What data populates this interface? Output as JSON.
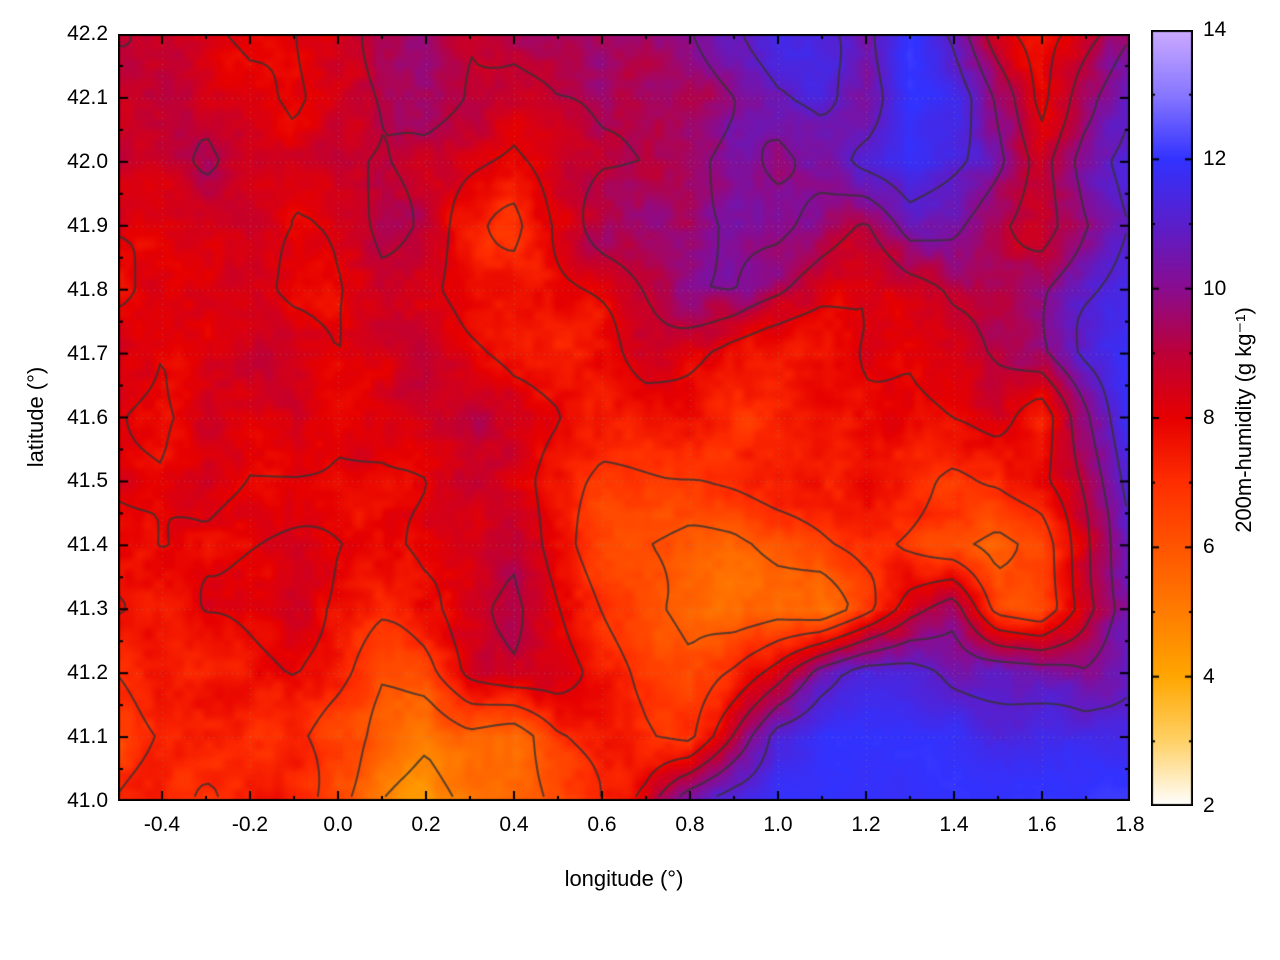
{
  "figure": {
    "background": "#ffffff"
  },
  "chart_data": {
    "type": "heatmap",
    "title": "",
    "xlabel": "longitude (°)",
    "ylabel": "latitude (°)",
    "xlim": [
      -0.5,
      1.8
    ],
    "ylim": [
      41.0,
      42.2
    ],
    "zlim": [
      2,
      14
    ],
    "grid_on": true,
    "xticks": [
      -0.4,
      -0.2,
      0.0,
      0.2,
      0.4,
      0.6,
      0.8,
      1.0,
      1.2,
      1.4,
      1.6,
      1.8
    ],
    "xtick_labels": [
      "-0.4",
      "-0.2",
      "0.0",
      "0.2",
      "0.4",
      "0.6",
      "0.8",
      "1.0",
      "1.2",
      "1.4",
      "1.6",
      "1.8"
    ],
    "yticks": [
      41.0,
      41.1,
      41.2,
      41.3,
      41.4,
      41.5,
      41.6,
      41.7,
      41.8,
      41.9,
      42.0,
      42.1,
      42.2
    ],
    "ytick_labels": [
      "41.0",
      "41.1",
      "41.2",
      "41.3",
      "41.4",
      "41.5",
      "41.6",
      "41.7",
      "41.8",
      "41.9",
      "42.0",
      "42.1",
      "42.2"
    ],
    "colorbar": {
      "label": "200m-humidity (g kg⁻¹)",
      "min": 2,
      "max": 14,
      "ticks": [
        2,
        4,
        6,
        8,
        10,
        12,
        14
      ],
      "tick_labels": [
        "2",
        "4",
        "6",
        "8",
        "10",
        "12",
        "14"
      ],
      "position": "right"
    },
    "palette": [
      {
        "value": 2,
        "color": "#ffffff"
      },
      {
        "value": 3,
        "color": "#ffd166"
      },
      {
        "value": 4,
        "color": "#ffa600"
      },
      {
        "value": 5,
        "color": "#ff7c00"
      },
      {
        "value": 6,
        "color": "#ff5500"
      },
      {
        "value": 7,
        "color": "#ff2e00"
      },
      {
        "value": 8,
        "color": "#e60000"
      },
      {
        "value": 9,
        "color": "#bd0038"
      },
      {
        "value": 10,
        "color": "#8a0c8f"
      },
      {
        "value": 11,
        "color": "#5a1ecb"
      },
      {
        "value": 12,
        "color": "#3232ff"
      },
      {
        "value": 13,
        "color": "#8877ff"
      },
      {
        "value": 14,
        "color": "#cbaaff"
      }
    ],
    "contour_levels": [
      5,
      6,
      7,
      8,
      9,
      10,
      11
    ],
    "contour_color": "#333333",
    "grid_values": {
      "note": "approximate humidity (g/kg) sampled on a 0.1 deg grid, rows north (42.2) to south (41.0), cols west (-0.5) to east (1.8)",
      "lon_start": -0.5,
      "lon_step": 0.1,
      "lat_start": 42.2,
      "lat_step": -0.1,
      "values": [
        [
          8.5,
          8.5,
          8.5,
          8.0,
          8.0,
          8.5,
          9.0,
          9.0,
          8.5,
          9.0,
          9.5,
          10.0,
          9.0,
          9.5,
          10.5,
          11.5,
          11.0,
          10.5,
          12.0,
          10.5,
          8.0,
          7.0,
          8.0,
          9.5
        ],
        [
          8.5,
          9.0,
          9.0,
          8.5,
          8.0,
          8.5,
          9.0,
          9.5,
          8.5,
          8.0,
          9.0,
          9.5,
          9.5,
          9.0,
          10.0,
          11.0,
          11.5,
          10.5,
          12.0,
          11.5,
          9.5,
          7.5,
          9.5,
          11.0
        ],
        [
          9.0,
          9.0,
          9.5,
          9.0,
          8.5,
          9.0,
          9.0,
          8.5,
          8.0,
          7.5,
          8.5,
          9.0,
          9.0,
          9.5,
          10.5,
          10.0,
          10.5,
          11.5,
          12.0,
          11.0,
          10.0,
          8.5,
          10.5,
          11.5
        ],
        [
          8.5,
          8.5,
          9.0,
          9.0,
          8.5,
          8.5,
          9.0,
          8.5,
          7.5,
          7.0,
          8.0,
          9.0,
          9.5,
          9.5,
          10.0,
          10.0,
          9.5,
          9.0,
          10.5,
          10.0,
          9.0,
          8.5,
          10.0,
          11.0
        ],
        [
          8.0,
          8.5,
          8.5,
          8.5,
          8.0,
          8.0,
          8.5,
          8.0,
          7.5,
          7.5,
          8.0,
          8.5,
          9.0,
          9.5,
          10.0,
          9.5,
          8.5,
          8.0,
          8.5,
          9.0,
          9.0,
          9.5,
          10.5,
          11.5
        ],
        [
          8.5,
          8.0,
          8.0,
          8.5,
          8.5,
          8.0,
          8.0,
          8.5,
          8.0,
          7.5,
          7.5,
          8.0,
          8.5,
          8.0,
          7.5,
          7.5,
          7.5,
          8.0,
          8.0,
          8.5,
          9.0,
          9.5,
          11.0,
          12.0
        ],
        [
          8.0,
          7.5,
          8.0,
          8.0,
          8.5,
          8.0,
          8.0,
          8.5,
          8.5,
          8.0,
          8.0,
          7.5,
          7.5,
          7.5,
          7.0,
          7.0,
          7.5,
          7.5,
          7.5,
          8.0,
          8.5,
          7.5,
          10.0,
          12.0
        ],
        [
          8.0,
          8.0,
          8.5,
          8.0,
          8.0,
          8.0,
          8.0,
          8.0,
          8.5,
          8.0,
          7.5,
          7.0,
          7.0,
          7.0,
          7.0,
          7.0,
          7.0,
          7.5,
          7.0,
          6.5,
          7.0,
          8.0,
          9.5,
          11.5
        ],
        [
          7.5,
          8.0,
          8.0,
          8.0,
          8.0,
          8.0,
          8.0,
          8.5,
          8.0,
          8.5,
          7.5,
          6.5,
          6.0,
          5.5,
          5.5,
          6.0,
          6.5,
          7.0,
          6.5,
          6.0,
          5.5,
          6.5,
          9.0,
          11.0
        ],
        [
          8.0,
          7.5,
          8.0,
          8.0,
          8.0,
          7.5,
          7.5,
          8.0,
          8.5,
          9.0,
          8.0,
          7.0,
          6.0,
          5.0,
          5.0,
          5.5,
          5.0,
          6.5,
          8.5,
          9.5,
          6.5,
          6.0,
          8.5,
          10.5
        ],
        [
          7.0,
          7.5,
          7.0,
          7.5,
          8.0,
          7.5,
          6.5,
          7.0,
          8.5,
          9.0,
          8.5,
          7.5,
          6.5,
          6.0,
          7.0,
          8.5,
          10.5,
          11.5,
          11.5,
          11.0,
          11.0,
          10.5,
          10.0,
          11.0
        ],
        [
          6.5,
          7.0,
          7.5,
          7.0,
          7.0,
          6.5,
          6.0,
          5.5,
          6.0,
          5.5,
          7.0,
          7.5,
          7.0,
          6.5,
          9.0,
          11.5,
          12.0,
          12.0,
          12.0,
          12.0,
          11.5,
          11.5,
          11.5,
          11.5
        ],
        [
          7.0,
          7.5,
          7.0,
          7.5,
          7.0,
          6.0,
          5.0,
          4.5,
          5.5,
          6.0,
          6.5,
          7.5,
          8.5,
          10.5,
          11.5,
          12.0,
          12.0,
          12.0,
          12.0,
          12.0,
          12.0,
          12.0,
          12.0,
          12.0
        ]
      ]
    }
  }
}
